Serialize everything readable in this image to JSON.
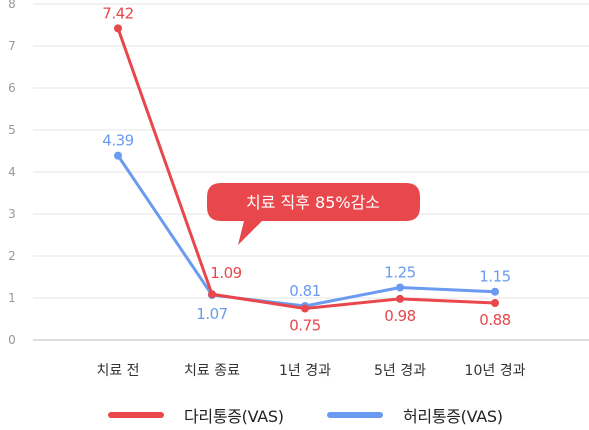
{
  "chart_data": {
    "type": "line",
    "categories": [
      "치료 전",
      "치료 종료",
      "1년 경과",
      "5년 경과",
      "10년 경과"
    ],
    "ylim": [
      0,
      8
    ],
    "yticks": [
      0,
      1,
      2,
      3,
      4,
      5,
      6,
      7,
      8
    ],
    "grid": true,
    "legend_position": "bottom",
    "series": [
      {
        "name": "다리통증(VAS)",
        "values": [
          7.42,
          1.09,
          0.75,
          0.98,
          0.88
        ],
        "labels": [
          "7.42",
          "1.09",
          "0.75",
          "0.98",
          "0.88"
        ],
        "color": "#e8474c"
      },
      {
        "name": "허리통증(VAS)",
        "values": [
          4.39,
          1.07,
          0.81,
          1.25,
          1.15
        ],
        "labels": [
          "4.39",
          "1.07",
          "0.81",
          "1.25",
          "1.15"
        ],
        "color": "#6a9bf0"
      }
    ],
    "annotations": [
      {
        "text": "치료 직후 85%감소",
        "color": "#e8474c"
      }
    ]
  }
}
